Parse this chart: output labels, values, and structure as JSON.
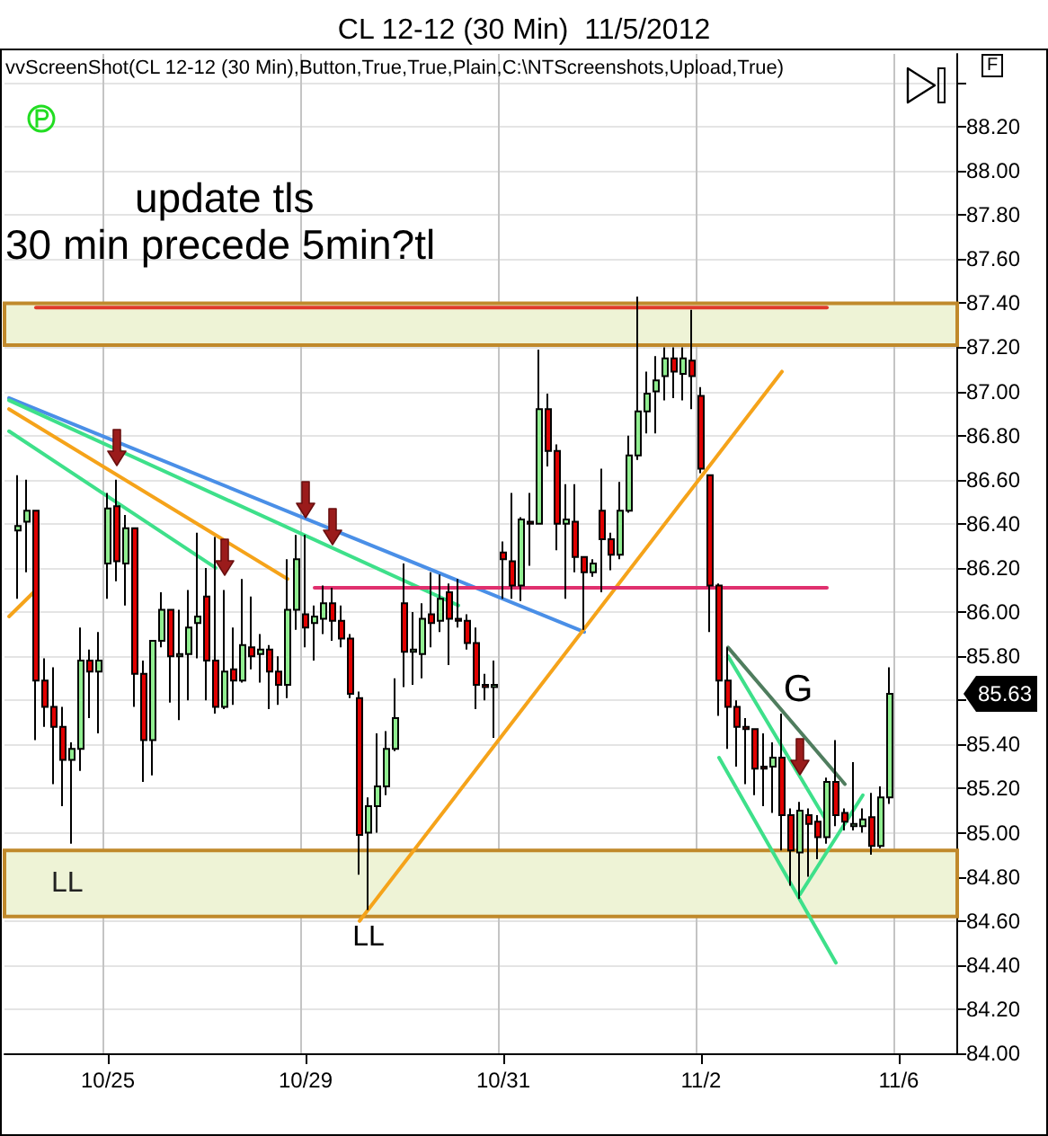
{
  "chart_data": {
    "type": "candlestick",
    "title": "CL 12-12 (30 Min)  11/5/2012",
    "annotations": [
      "vvScreenShot(CL 12-12 (30 Min),Button,True,True,Plain,C:\\NTScreenshots,Upload,True)",
      "update tls",
      "30 min precede 5min?tl",
      "LL",
      "G",
      "F",
      "85.63"
    ],
    "categories": [
      null,
      null,
      null,
      null,
      null,
      null,
      null,
      null,
      null,
      null,
      null,
      "10/25",
      null,
      null,
      null,
      null,
      null,
      null,
      null,
      null,
      null,
      null,
      null,
      null,
      null,
      null,
      null,
      null,
      null,
      null,
      null,
      null,
      null,
      "10/29",
      null,
      null,
      null,
      null,
      null,
      null,
      null,
      null,
      null,
      null,
      null,
      null,
      null,
      null,
      null,
      null,
      null,
      null,
      null,
      null,
      null,
      "10/31",
      null,
      null,
      null,
      null,
      null,
      null,
      null,
      null,
      null,
      null,
      null,
      null,
      null,
      null,
      null,
      null,
      null,
      null,
      null,
      null,
      null,
      "11/2",
      null,
      null,
      null,
      null,
      null,
      null,
      null,
      null,
      null,
      null,
      null,
      null,
      null,
      null,
      null,
      null,
      null,
      null,
      null,
      null,
      null,
      "11/6",
      null,
      null,
      null,
      null,
      null,
      null
    ],
    "ohlc": [
      null,
      [
        86.37,
        86.62,
        86.06,
        86.39
      ],
      [
        86.41,
        86.6,
        86.18,
        86.46
      ],
      [
        86.46,
        86.46,
        85.42,
        85.69
      ],
      [
        85.69,
        85.79,
        85.48,
        85.57
      ],
      [
        85.57,
        85.75,
        85.22,
        85.48
      ],
      [
        85.48,
        85.57,
        85.12,
        85.33
      ],
      [
        85.33,
        85.41,
        84.95,
        85.38
      ],
      [
        85.38,
        85.93,
        85.28,
        85.78
      ],
      [
        85.78,
        85.83,
        85.52,
        85.73
      ],
      [
        85.73,
        85.91,
        85.45,
        85.78
      ],
      [
        86.22,
        86.54,
        86.06,
        86.47
      ],
      [
        86.48,
        86.6,
        86.14,
        86.23
      ],
      [
        86.22,
        86.44,
        86.03,
        86.38
      ],
      [
        86.38,
        86.38,
        85.57,
        85.72
      ],
      [
        85.72,
        85.78,
        85.23,
        85.42
      ],
      [
        85.42,
        85.87,
        85.26,
        85.87
      ],
      [
        85.87,
        86.09,
        85.84,
        86.01
      ],
      [
        86.01,
        86.01,
        85.59,
        85.8
      ],
      [
        85.8,
        86.01,
        85.51,
        85.81
      ],
      [
        85.81,
        86.1,
        85.6,
        85.93
      ],
      [
        85.95,
        86.36,
        85.79,
        85.98
      ],
      [
        86.07,
        86.2,
        85.6,
        85.78
      ],
      [
        85.78,
        86.34,
        85.54,
        85.57
      ],
      [
        85.57,
        86.1,
        85.56,
        85.73
      ],
      [
        85.74,
        85.93,
        85.58,
        85.69
      ],
      [
        85.69,
        86.15,
        85.68,
        85.85
      ],
      [
        85.84,
        86.07,
        85.74,
        85.8
      ],
      [
        85.81,
        85.9,
        85.68,
        85.83
      ],
      [
        85.83,
        85.85,
        85.56,
        85.73
      ],
      [
        85.73,
        85.8,
        85.58,
        85.67
      ],
      [
        85.67,
        86.24,
        85.61,
        86.01
      ],
      [
        86.01,
        86.35,
        85.92,
        86.24
      ],
      [
        85.99,
        86.35,
        85.84,
        85.93
      ],
      [
        85.95,
        86.03,
        85.78,
        85.98
      ],
      [
        85.97,
        86.12,
        85.9,
        86.04
      ],
      [
        86.04,
        86.11,
        85.87,
        85.96
      ],
      [
        85.96,
        86.03,
        85.84,
        85.88
      ],
      [
        85.88,
        85.9,
        85.61,
        85.63
      ],
      [
        85.61,
        85.64,
        84.81,
        84.99
      ],
      [
        85,
        85.16,
        84.65,
        85.12
      ],
      [
        85.12,
        85.45,
        85,
        85.21
      ],
      [
        85.21,
        85.46,
        85.17,
        85.38
      ],
      [
        85.38,
        85.7,
        85.37,
        85.52
      ],
      [
        86.04,
        86.22,
        85.66,
        85.82
      ],
      [
        85.82,
        86,
        85.67,
        85.83
      ],
      [
        85.81,
        86.04,
        85.7,
        85.97
      ],
      [
        85.99,
        86.18,
        85.84,
        85.95
      ],
      [
        85.96,
        86.17,
        85.91,
        86.06
      ],
      [
        86.09,
        86.13,
        85.76,
        85.97
      ],
      [
        85.97,
        86.15,
        85.93,
        85.96
      ],
      [
        85.96,
        85.99,
        85.83,
        85.86
      ],
      [
        85.86,
        85.93,
        85.56,
        85.67
      ],
      [
        85.67,
        85.72,
        85.6,
        85.66
      ],
      [
        85.66,
        85.78,
        85.43,
        85.67
      ],
      [
        86.27,
        86.32,
        86.06,
        86.24
      ],
      [
        86.23,
        86.54,
        86.06,
        86.12
      ],
      [
        86.12,
        86.43,
        86.05,
        86.42
      ],
      [
        86.41,
        86.54,
        86.21,
        86.4
      ],
      [
        86.4,
        87.19,
        86.4,
        86.92
      ],
      [
        86.92,
        86.99,
        86.66,
        86.73
      ],
      [
        86.73,
        86.76,
        86.28,
        86.4
      ],
      [
        86.4,
        86.58,
        86.06,
        86.42
      ],
      [
        86.41,
        86.58,
        86.18,
        86.25
      ],
      [
        86.25,
        86.25,
        85.92,
        86.18
      ],
      [
        86.18,
        86.24,
        86.16,
        86.22
      ],
      [
        86.46,
        86.65,
        86.09,
        86.33
      ],
      [
        86.33,
        86.36,
        86.19,
        86.26
      ],
      [
        86.26,
        86.59,
        86.24,
        86.46
      ],
      [
        86.46,
        86.8,
        86.45,
        86.71
      ],
      [
        86.71,
        87.43,
        86.69,
        86.91
      ],
      [
        86.91,
        87.09,
        86.81,
        86.99
      ],
      [
        87,
        87.16,
        86.81,
        87.05
      ],
      [
        87.07,
        87.2,
        86.96,
        87.15
      ],
      [
        87.15,
        87.2,
        86.97,
        87.09
      ],
      [
        87.08,
        87.2,
        86.96,
        87.15
      ],
      [
        87.14,
        87.37,
        86.92,
        87.07
      ],
      [
        86.98,
        87.02,
        86.63,
        86.65
      ],
      [
        86.62,
        86.62,
        85.91,
        86.12
      ],
      [
        86.12,
        86.13,
        85.53,
        85.69
      ],
      [
        85.69,
        85.84,
        85.38,
        85.57
      ],
      [
        85.57,
        85.6,
        85.3,
        85.48
      ],
      [
        85.48,
        85.52,
        85.22,
        85.47
      ],
      [
        85.47,
        85.47,
        85.17,
        85.29
      ],
      [
        85.3,
        85.45,
        85.12,
        85.29
      ],
      [
        85.3,
        85.41,
        85.09,
        85.34
      ],
      [
        85.34,
        85.54,
        84.92,
        85.08
      ],
      [
        85.08,
        85.11,
        84.76,
        84.92
      ],
      [
        84.91,
        85.14,
        84.7,
        85.1
      ],
      [
        85.08,
        85.11,
        84.8,
        85.04
      ],
      [
        85.05,
        85.08,
        84.88,
        84.98
      ],
      [
        84.98,
        85.25,
        84.95,
        85.23
      ],
      [
        85.23,
        85.42,
        85.03,
        85.08
      ],
      [
        85.09,
        85.11,
        85.01,
        85.05
      ],
      [
        85.03,
        85.32,
        85.01,
        85.04
      ],
      [
        85.03,
        85.11,
        85,
        85.06
      ],
      [
        85.07,
        85.18,
        84.9,
        84.94
      ],
      [
        84.94,
        85.21,
        84.93,
        85.16
      ],
      [
        85.16,
        85.75,
        85.13,
        85.63
      ],
      null,
      null,
      null,
      null,
      null,
      null,
      null
    ],
    "colors": [
      null,
      "#90ee90",
      "#90ee90",
      "#e00000",
      "#e00000",
      "#e00000",
      "#e00000",
      "#90ee90",
      "#90ee90",
      "#e00000",
      "#90ee90",
      "#90ee90",
      "#e00000",
      "#90ee90",
      "#e00000",
      "#e00000",
      "#90ee90",
      "#90ee90",
      "#e00000",
      "#90ee90",
      "#90ee90",
      "#90ee90",
      "#e00000",
      "#e00000",
      "#90ee90",
      "#e00000",
      "#90ee90",
      "#e00000",
      "#90ee90",
      "#e00000",
      "#e00000",
      "#90ee90",
      "#90ee90",
      "#e00000",
      "#90ee90",
      "#90ee90",
      "#e00000",
      "#e00000",
      "#e00000",
      "#e00000",
      "#90ee90",
      "#90ee90",
      "#90ee90",
      "#90ee90",
      "#e00000",
      "#90ee90",
      "#90ee90",
      "#e00000",
      "#90ee90",
      "#e00000",
      "#e00000",
      "#e00000",
      "#e00000",
      "#e00000",
      "#90ee90",
      "#e00000",
      "#e00000",
      "#90ee90",
      "#e00000",
      "#90ee90",
      "#e00000",
      "#e00000",
      "#90ee90",
      "#e00000",
      "#e00000",
      "#90ee90",
      "#e00000",
      "#e00000",
      "#90ee90",
      "#90ee90",
      "#90ee90",
      "#90ee90",
      "#90ee90",
      "#90ee90",
      "#e00000",
      "#90ee90",
      "#e00000",
      "#e00000",
      "#e00000",
      "#e00000",
      "#e00000",
      "#e00000",
      "#e00000",
      "#e00000",
      "#e00000",
      "#90ee90",
      "#e00000",
      "#e00000",
      "#90ee90",
      "#e00000",
      "#e00000",
      "#90ee90",
      "#e00000",
      "#e00000",
      "#90ee90",
      "#90ee90",
      "#e00000",
      "#90ee90",
      "#90ee90",
      null,
      null,
      null,
      null,
      null,
      null,
      null
    ],
    "series": [
      {
        "type": "line",
        "color": "#4a8fe7",
        "values": [
          86.97,
          null,
          null,
          null,
          null,
          null,
          null,
          null,
          null,
          null,
          null,
          null,
          null,
          null,
          null,
          null,
          null,
          null,
          null,
          null,
          null,
          null,
          null,
          null,
          null,
          null,
          null,
          null,
          null,
          null,
          null,
          null,
          null,
          null,
          null,
          null,
          null,
          null,
          null,
          null,
          null,
          null,
          null,
          null,
          null,
          null,
          null,
          null,
          null,
          null,
          null,
          null,
          null,
          null,
          null,
          null,
          null,
          null,
          null,
          null,
          null,
          null,
          null,
          null,
          85.91,
          null,
          null,
          null,
          null,
          null,
          null,
          null,
          null,
          null,
          null,
          null,
          null,
          null,
          null,
          null,
          null,
          null,
          null,
          null,
          null,
          null,
          null,
          null,
          null,
          null,
          null,
          null,
          null,
          null,
          null,
          null,
          null,
          null,
          null,
          null,
          null,
          null,
          null,
          null,
          null,
          null
        ]
      },
      {
        "type": "line",
        "color": "#3ee08a",
        "values": [
          86.96,
          null,
          null,
          null,
          null,
          null,
          null,
          null,
          null,
          null,
          null,
          null,
          null,
          null,
          null,
          null,
          null,
          null,
          null,
          null,
          null,
          null,
          null,
          null,
          null,
          null,
          null,
          null,
          null,
          null,
          null,
          null,
          null,
          null,
          null,
          null,
          null,
          null,
          null,
          null,
          null,
          null,
          null,
          null,
          null,
          null,
          null,
          null,
          null,
          null,
          86.03,
          null,
          null,
          null,
          null,
          null,
          null,
          null,
          null,
          null,
          null,
          null,
          null,
          null,
          null,
          null,
          null,
          null,
          null,
          null,
          null,
          null,
          null,
          null,
          null,
          null,
          null,
          null,
          null,
          null,
          null,
          null,
          null,
          null,
          null,
          null,
          null,
          null,
          null,
          null,
          null,
          null,
          null,
          null,
          null,
          null,
          null,
          null,
          null,
          null,
          null,
          null,
          null,
          null,
          null,
          null
        ]
      },
      {
        "type": "line",
        "color": "#3ee08a",
        "values": [
          86.82,
          null,
          null,
          null,
          null,
          null,
          null,
          null,
          null,
          null,
          null,
          null,
          null,
          null,
          null,
          null,
          null,
          null,
          null,
          null,
          null,
          null,
          null,
          86.2,
          null,
          null,
          null,
          null,
          null,
          null,
          null,
          null,
          null,
          null,
          null,
          null,
          null,
          null,
          null,
          null,
          null,
          null,
          null,
          null,
          null,
          null,
          null,
          null,
          null,
          null,
          null,
          null,
          null,
          null,
          null,
          null,
          null,
          null,
          null,
          null,
          null,
          null,
          null,
          null,
          null,
          null,
          null,
          null,
          null,
          null,
          null,
          null,
          null,
          null,
          null,
          null,
          null,
          null,
          null,
          null,
          null,
          null,
          null,
          null,
          null,
          null,
          null,
          null,
          null,
          null,
          null,
          null,
          null,
          null,
          null,
          null,
          null,
          null,
          null,
          null,
          null,
          null,
          null,
          null,
          null,
          null
        ]
      },
      {
        "type": "line",
        "color": "#f5a31a",
        "values": [
          86.92,
          null,
          null,
          null,
          null,
          null,
          null,
          null,
          null,
          null,
          null,
          null,
          null,
          null,
          null,
          null,
          null,
          null,
          null,
          null,
          null,
          null,
          null,
          null,
          null,
          null,
          null,
          null,
          null,
          null,
          null,
          86.15,
          null,
          null,
          null,
          null,
          null,
          null,
          null,
          null,
          null,
          null,
          null,
          null,
          null,
          null,
          null,
          null,
          null,
          null,
          null,
          null,
          null,
          null,
          null,
          null,
          null,
          null,
          null,
          null,
          null,
          null,
          null,
          null,
          null,
          null,
          null,
          null,
          null,
          null,
          null,
          null,
          null,
          null,
          null,
          null,
          null,
          null,
          null,
          null,
          null,
          null,
          null,
          null,
          null,
          null,
          null,
          null,
          null,
          null,
          null,
          null,
          null,
          null,
          null,
          null,
          null,
          null,
          null,
          null,
          null,
          null,
          null,
          null,
          null,
          null
        ]
      },
      {
        "type": "line",
        "color": "#f5a31a",
        "values": [
          85.98,
          null,
          null,
          86.1,
          null,
          null,
          null,
          null,
          null,
          null,
          null,
          null,
          null,
          null,
          null,
          null,
          null,
          null,
          null,
          null,
          null,
          null,
          null,
          null,
          null,
          null,
          null,
          null,
          null,
          null,
          null,
          null,
          null,
          null,
          null,
          null,
          null,
          null,
          null,
          null,
          null,
          null,
          null,
          null,
          null,
          null,
          null,
          null,
          null,
          null,
          null,
          null,
          null,
          null,
          null,
          null,
          null,
          null,
          null,
          null,
          null,
          null,
          null,
          null,
          null,
          null,
          null,
          null,
          null,
          null,
          null,
          null,
          null,
          null,
          null,
          null,
          null,
          null,
          null,
          null,
          null,
          null,
          null,
          null,
          null,
          null,
          null,
          null,
          null,
          null,
          null,
          null,
          null,
          null,
          null,
          null,
          null,
          null,
          null,
          null,
          null,
          null,
          null,
          null,
          null,
          null
        ]
      },
      {
        "type": "line",
        "color": "#f5a31a",
        "values": [
          null,
          null,
          null,
          null,
          null,
          null,
          null,
          null,
          null,
          null,
          null,
          null,
          null,
          null,
          null,
          null,
          null,
          null,
          null,
          null,
          null,
          null,
          null,
          null,
          null,
          null,
          null,
          null,
          null,
          null,
          null,
          null,
          null,
          null,
          null,
          null,
          null,
          null,
          null,
          84.6,
          null,
          null,
          null,
          null,
          null,
          null,
          null,
          null,
          null,
          null,
          null,
          null,
          null,
          null,
          null,
          null,
          null,
          null,
          null,
          null,
          null,
          null,
          null,
          null,
          null,
          null,
          null,
          null,
          null,
          null,
          null,
          null,
          null,
          null,
          null,
          null,
          null,
          null,
          null,
          null,
          null,
          null,
          null,
          null,
          null,
          null,
          87.09,
          null,
          null,
          null,
          null,
          null,
          null,
          null,
          null,
          null,
          null,
          null,
          null,
          null,
          null,
          null,
          null,
          null,
          null,
          null
        ]
      },
      {
        "type": "line",
        "color": "#e0306e",
        "values": [
          null,
          null,
          null,
          null,
          null,
          null,
          null,
          null,
          null,
          null,
          null,
          null,
          null,
          null,
          null,
          null,
          null,
          null,
          null,
          null,
          null,
          null,
          null,
          null,
          null,
          null,
          null,
          null,
          null,
          null,
          null,
          null,
          null,
          null,
          86.11,
          null,
          null,
          null,
          null,
          null,
          null,
          null,
          null,
          null,
          null,
          null,
          null,
          null,
          null,
          null,
          null,
          null,
          null,
          null,
          null,
          null,
          null,
          null,
          null,
          null,
          null,
          null,
          null,
          null,
          null,
          null,
          null,
          null,
          null,
          null,
          null,
          null,
          null,
          null,
          null,
          null,
          null,
          null,
          null,
          null,
          null,
          null,
          null,
          null,
          null,
          null,
          null,
          null,
          null,
          null,
          null,
          86.11,
          null,
          null,
          null,
          null,
          null,
          null,
          null,
          null,
          null,
          null,
          null,
          null,
          null,
          null
        ]
      },
      {
        "type": "line",
        "color": "#e03a2a",
        "values": [
          null,
          null,
          null,
          87.38,
          null,
          null,
          null,
          null,
          null,
          null,
          null,
          null,
          null,
          null,
          null,
          null,
          null,
          null,
          null,
          null,
          null,
          null,
          null,
          null,
          null,
          null,
          null,
          null,
          null,
          null,
          null,
          null,
          null,
          null,
          null,
          null,
          null,
          null,
          null,
          null,
          null,
          null,
          null,
          null,
          null,
          null,
          null,
          null,
          null,
          null,
          null,
          null,
          null,
          null,
          null,
          null,
          null,
          null,
          null,
          null,
          null,
          null,
          null,
          null,
          null,
          null,
          null,
          null,
          null,
          null,
          null,
          null,
          null,
          null,
          null,
          null,
          null,
          null,
          null,
          null,
          null,
          null,
          null,
          null,
          null,
          null,
          null,
          null,
          null,
          null,
          null,
          87.38,
          null,
          null,
          null,
          null,
          null,
          null,
          null,
          null,
          null,
          null,
          null,
          null,
          null,
          null
        ]
      },
      {
        "type": "line",
        "color": "#4f7d5e",
        "values": [
          null,
          null,
          null,
          null,
          null,
          null,
          null,
          null,
          null,
          null,
          null,
          null,
          null,
          null,
          null,
          null,
          null,
          null,
          null,
          null,
          null,
          null,
          null,
          null,
          null,
          null,
          null,
          null,
          null,
          null,
          null,
          null,
          null,
          null,
          null,
          null,
          null,
          null,
          null,
          null,
          null,
          null,
          null,
          null,
          null,
          null,
          null,
          null,
          null,
          null,
          null,
          null,
          null,
          null,
          null,
          null,
          null,
          null,
          null,
          null,
          null,
          null,
          null,
          null,
          null,
          null,
          null,
          null,
          null,
          null,
          null,
          null,
          null,
          null,
          null,
          null,
          null,
          null,
          null,
          null,
          85.84,
          null,
          null,
          null,
          null,
          null,
          null,
          null,
          null,
          null,
          null,
          null,
          null,
          85.22,
          null,
          null,
          null,
          null,
          null,
          null,
          null,
          null,
          null,
          null,
          null,
          null
        ]
      },
      {
        "type": "line",
        "color": "#3ee08a",
        "values": [
          null,
          null,
          null,
          null,
          null,
          null,
          null,
          null,
          null,
          null,
          null,
          null,
          null,
          null,
          null,
          null,
          null,
          null,
          null,
          null,
          null,
          null,
          null,
          null,
          null,
          null,
          null,
          null,
          null,
          null,
          null,
          null,
          null,
          null,
          null,
          null,
          null,
          null,
          null,
          null,
          null,
          null,
          null,
          null,
          null,
          null,
          null,
          null,
          null,
          null,
          null,
          null,
          null,
          null,
          null,
          null,
          null,
          null,
          null,
          null,
          null,
          null,
          null,
          null,
          null,
          null,
          null,
          null,
          null,
          null,
          null,
          null,
          null,
          null,
          null,
          null,
          null,
          null,
          null,
          null,
          85.8,
          null,
          null,
          null,
          null,
          null,
          null,
          null,
          null,
          null,
          null,
          85.05,
          null,
          null,
          null,
          null,
          null,
          null,
          null,
          null,
          null,
          null,
          null,
          null,
          null,
          null
        ]
      },
      {
        "type": "line",
        "color": "#3ee08a",
        "values": [
          null,
          null,
          null,
          null,
          null,
          null,
          null,
          null,
          null,
          null,
          null,
          null,
          null,
          null,
          null,
          null,
          null,
          null,
          null,
          null,
          null,
          null,
          null,
          null,
          null,
          null,
          null,
          null,
          null,
          null,
          null,
          null,
          null,
          null,
          null,
          null,
          null,
          null,
          null,
          null,
          null,
          null,
          null,
          null,
          null,
          null,
          null,
          null,
          null,
          null,
          null,
          null,
          null,
          null,
          null,
          null,
          null,
          null,
          null,
          null,
          null,
          null,
          null,
          null,
          null,
          null,
          null,
          null,
          null,
          null,
          null,
          null,
          null,
          null,
          null,
          null,
          null,
          null,
          null,
          85.34,
          null,
          null,
          null,
          null,
          null,
          null,
          null,
          null,
          null,
          null,
          null,
          null,
          84.41,
          null,
          null,
          null,
          null,
          null,
          null,
          null,
          null,
          null,
          null,
          null,
          null,
          null
        ]
      },
      {
        "type": "line",
        "color": "#3ee08a",
        "values": [
          null,
          null,
          null,
          null,
          null,
          null,
          null,
          null,
          null,
          null,
          null,
          null,
          null,
          null,
          null,
          null,
          null,
          null,
          null,
          null,
          null,
          null,
          null,
          null,
          null,
          null,
          null,
          null,
          null,
          null,
          null,
          null,
          null,
          null,
          null,
          null,
          null,
          null,
          null,
          null,
          null,
          null,
          null,
          null,
          null,
          null,
          null,
          null,
          null,
          null,
          null,
          null,
          null,
          null,
          null,
          null,
          null,
          null,
          null,
          null,
          null,
          null,
          null,
          null,
          null,
          null,
          null,
          null,
          null,
          null,
          null,
          null,
          null,
          null,
          null,
          null,
          null,
          null,
          null,
          null,
          null,
          null,
          null,
          null,
          null,
          null,
          null,
          null,
          84.72,
          null,
          null,
          null,
          null,
          null,
          null,
          85.17,
          null,
          null,
          null,
          null,
          null,
          null,
          null,
          null,
          null,
          null
        ]
      }
    ],
    "bands": [
      {
        "axis": "y",
        "from": 87.21,
        "to": 87.4,
        "color": "#eef3d6"
      },
      {
        "axis": "y",
        "from": 84.62,
        "to": 84.92,
        "label": "LL",
        "color": "#eef3d6"
      }
    ],
    "ylim": [
      84,
      88.53
    ],
    "yticks": [
      {
        "value": 84,
        "label": "84.00"
      },
      {
        "value": 84.2,
        "label": "84.20"
      },
      {
        "value": 84.4,
        "label": "84.40"
      },
      {
        "value": 84.6,
        "label": "84.60"
      },
      {
        "value": 84.8,
        "label": "84.80"
      },
      {
        "value": 85,
        "label": "85.00"
      },
      {
        "value": 85.2,
        "label": "85.20"
      },
      {
        "value": 85.4,
        "label": "85.40"
      },
      {
        "value": 85.6,
        "label": null
      },
      {
        "value": 85.8,
        "label": "85.80"
      },
      {
        "value": 86,
        "label": "86.00"
      },
      {
        "value": 86.2,
        "label": "86.20"
      },
      {
        "value": 86.4,
        "label": "86.40"
      },
      {
        "value": 86.6,
        "label": "86.60"
      },
      {
        "value": 86.8,
        "label": "86.80"
      },
      {
        "value": 87,
        "label": "87.00"
      },
      {
        "value": 87.2,
        "label": "87.20"
      },
      {
        "value": 87.4,
        "label": "87.40"
      },
      {
        "value": 87.6,
        "label": "87.60"
      },
      {
        "value": 87.8,
        "label": "87.80"
      },
      {
        "value": 88,
        "label": "88.00"
      },
      {
        "value": 88.2,
        "label": "88.20"
      },
      {
        "value": 88.4,
        "label": null
      }
    ],
    "grid": true,
    "marker": "none"
  }
}
